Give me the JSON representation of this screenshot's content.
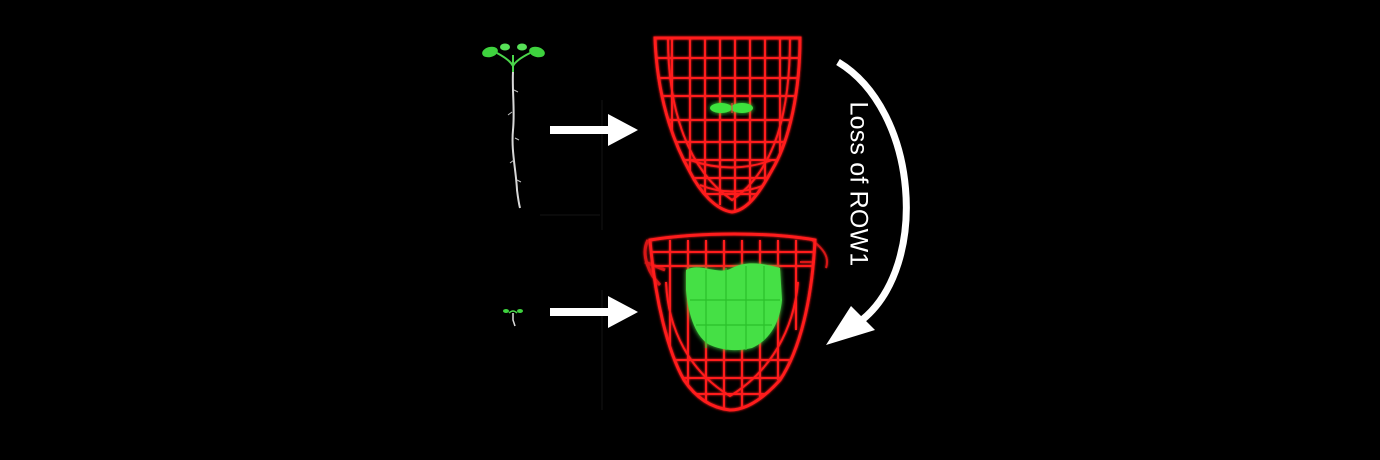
{
  "figure": {
    "arrow_label": "Loss of ROW1"
  },
  "colors": {
    "background": "#000000",
    "cell_wall_red": "#ff1a1a",
    "gfp_green": "#3ce23c",
    "arrow_white": "#ffffff"
  },
  "icons": {
    "horizontal_arrow": "right-arrow-icon",
    "curved_arrow": "curved-arrow-icon"
  }
}
